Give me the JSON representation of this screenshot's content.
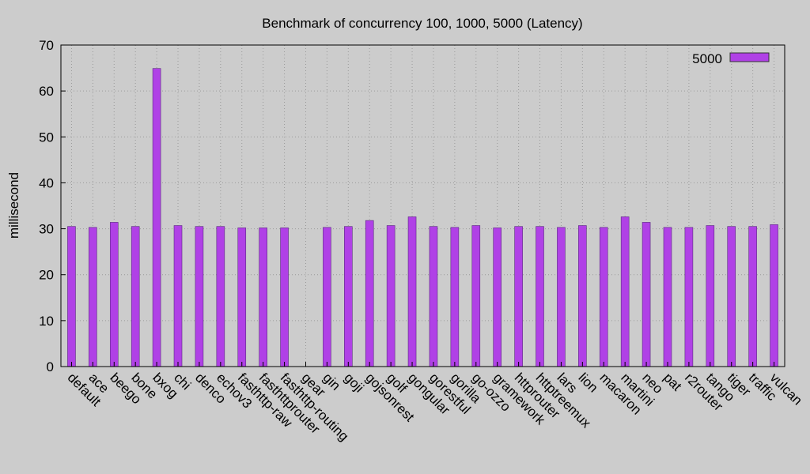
{
  "chart_data": {
    "type": "bar",
    "title": "Benchmark of concurrency 100, 1000, 5000 (Latency)",
    "xlabel": "",
    "ylabel": "millisecond",
    "ylim": [
      0,
      70
    ],
    "yticks": [
      0,
      10,
      20,
      30,
      40,
      50,
      60,
      70
    ],
    "grid": true,
    "legend_position": "top-right",
    "categories": [
      "default",
      "ace",
      "beego",
      "bone",
      "bxog",
      "chi",
      "denco",
      "echov3",
      "fasthttp-raw",
      "fasthttprouter",
      "fasthttp-routing",
      "gear",
      "gin",
      "goji",
      "gojsonrest",
      "golf",
      "gongular",
      "gorestful",
      "gorilla",
      "go-ozzo",
      "gramework",
      "httprouter",
      "httptreemux",
      "lars",
      "lion",
      "macaron",
      "martini",
      "neo",
      "pat",
      "r2router",
      "tango",
      "tiger",
      "traffic",
      "vulcan"
    ],
    "series": [
      {
        "name": "5000",
        "color": "#b041e6",
        "values": [
          30.5,
          30.3,
          31.4,
          30.5,
          64.9,
          30.7,
          30.5,
          30.5,
          30.2,
          30.2,
          30.2,
          0,
          30.3,
          30.5,
          31.8,
          30.7,
          32.6,
          30.5,
          30.3,
          30.7,
          30.2,
          30.5,
          30.5,
          30.3,
          30.7,
          30.3,
          32.6,
          31.4,
          30.3,
          30.3,
          30.7,
          30.5,
          30.5,
          30.9
        ]
      }
    ]
  }
}
